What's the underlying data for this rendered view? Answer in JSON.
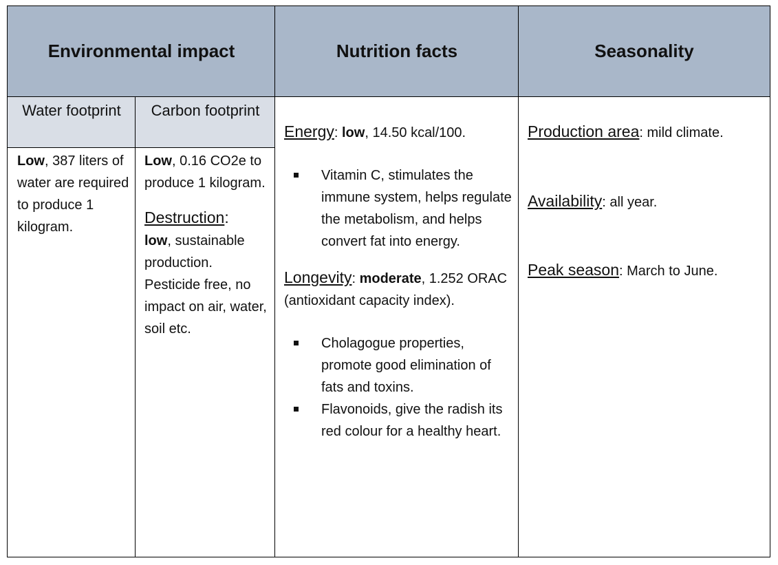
{
  "headers": {
    "environmental": "Environmental impact",
    "nutrition": "Nutrition facts",
    "seasonality": "Seasonality"
  },
  "subheaders": {
    "water": "Water footprint",
    "carbon": "Carbon footprint"
  },
  "water": {
    "level": "Low",
    "text": ", 387 liters of water are required to produce 1 kilogram."
  },
  "carbon": {
    "level": "Low",
    "text": ", 0.16 CO2e to produce 1 kilogram.",
    "destruction_label": "Destruction",
    "destruction_sep": ":",
    "destruction_level": "low",
    "destruction_text": ", sustainable production. Pesticide free, no impact on air, water, soil etc."
  },
  "nutrition": {
    "energy_label": "Energy",
    "energy_sep": ": ",
    "energy_level": "low",
    "energy_text": ", 14.50 kcal/100.",
    "energy_bullets": [
      "Vitamin C, stimulates the immune system, helps regulate the metabolism, and helps convert fat into energy."
    ],
    "longevity_label": "Longevity",
    "longevity_sep": ": ",
    "longevity_level": "moderate",
    "longevity_text": ", 1.252 ORAC (antioxidant capacity index).",
    "longevity_bullets": [
      "Cholagogue properties, promote good elimination of fats and toxins.",
      "Flavonoids, give the radish its red colour for a healthy heart."
    ]
  },
  "seasonality": {
    "production_label": "Production area",
    "production_sep": ": ",
    "production_text": "mild climate.",
    "availability_label": "Availability",
    "availability_sep": ": ",
    "availability_text": "all year.",
    "peak_label": "Peak season",
    "peak_sep": ": ",
    "peak_text": "March to June."
  },
  "colors": {
    "header_bg": "#a9b7c9",
    "subheader_bg": "#d9dee6",
    "border": "#000000"
  }
}
